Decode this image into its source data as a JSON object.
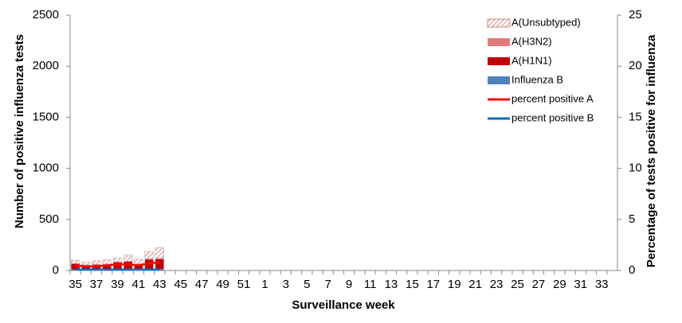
{
  "chart_data": {
    "type": "bar-line",
    "x_label": "Surveillance  week",
    "y_label": "Number of positive influenza tests",
    "y2_label": "Percentage of tests positive for influenza",
    "categories": [
      "35",
      null,
      "37",
      null,
      "39",
      null,
      "41",
      null,
      "43",
      null,
      "45",
      null,
      "47",
      null,
      "49",
      null,
      "51",
      null,
      "1",
      null,
      "3",
      null,
      "5",
      null,
      "7",
      null,
      "9",
      null,
      "11",
      null,
      "13",
      null,
      "15",
      null,
      "17",
      null,
      "19",
      null,
      "21",
      null,
      "23",
      null,
      "25",
      null,
      "27",
      null,
      "29",
      null,
      "31",
      null,
      "33",
      null
    ],
    "ylim": [
      0,
      2500
    ],
    "yticks": [
      0,
      500,
      1000,
      1500,
      2000,
      2500
    ],
    "y2lim": [
      0,
      25
    ],
    "y2ticks": [
      0,
      5,
      10,
      15,
      20,
      25
    ],
    "series": [
      {
        "name": "A(Unsubtyped)",
        "kind": "bar",
        "hatch": true,
        "color": "#d48a8a",
        "values": [
          30,
          25,
          35,
          40,
          35,
          60,
          45,
          70,
          105,
          null,
          null,
          null,
          null,
          null,
          null,
          null,
          null,
          null,
          null,
          null,
          null,
          null,
          null,
          null,
          null,
          null,
          null,
          null,
          null,
          null,
          null,
          null,
          null,
          null,
          null,
          null,
          null,
          null,
          null,
          null,
          null,
          null,
          null,
          null,
          null,
          null,
          null,
          null,
          null,
          null,
          null,
          null
        ]
      },
      {
        "name": "A(H3N2)",
        "kind": "bar",
        "color": "#e07b7b",
        "values": [
          5,
          5,
          5,
          5,
          5,
          5,
          5,
          10,
          10,
          null,
          null,
          null,
          null,
          null,
          null,
          null,
          null,
          null,
          null,
          null,
          null,
          null,
          null,
          null,
          null,
          null,
          null,
          null,
          null,
          null,
          null,
          null,
          null,
          null,
          null,
          null,
          null,
          null,
          null,
          null,
          null,
          null,
          null,
          null,
          null,
          null,
          null,
          null,
          null,
          null,
          null,
          null
        ]
      },
      {
        "name": "A(H1N1)",
        "kind": "bar",
        "color": "#c00000",
        "values": [
          55,
          40,
          45,
          50,
          65,
          70,
          50,
          90,
          95,
          null,
          null,
          null,
          null,
          null,
          null,
          null,
          null,
          null,
          null,
          null,
          null,
          null,
          null,
          null,
          null,
          null,
          null,
          null,
          null,
          null,
          null,
          null,
          null,
          null,
          null,
          null,
          null,
          null,
          null,
          null,
          null,
          null,
          null,
          null,
          null,
          null,
          null,
          null,
          null,
          null,
          null,
          null
        ]
      },
      {
        "name": "Influenza B",
        "kind": "bar",
        "color": "#4f81bd",
        "values": [
          10,
          10,
          10,
          10,
          15,
          15,
          10,
          15,
          15,
          null,
          null,
          null,
          null,
          null,
          null,
          null,
          null,
          null,
          null,
          null,
          null,
          null,
          null,
          null,
          null,
          null,
          null,
          null,
          null,
          null,
          null,
          null,
          null,
          null,
          null,
          null,
          null,
          null,
          null,
          null,
          null,
          null,
          null,
          null,
          null,
          null,
          null,
          null,
          null,
          null,
          null,
          null
        ]
      },
      {
        "name": "percent positive A",
        "kind": "line",
        "axis": "y2",
        "color": "#ff0000",
        "values": [
          0.5,
          0.4,
          0.4,
          0.5,
          0.6,
          0.6,
          0.5,
          0.7,
          0.8,
          null,
          null,
          null,
          null,
          null,
          null,
          null,
          null,
          null,
          null,
          null,
          null,
          null,
          null,
          null,
          null,
          null,
          null,
          null,
          null,
          null,
          null,
          null,
          null,
          null,
          null,
          null,
          null,
          null,
          null,
          null,
          null,
          null,
          null,
          null,
          null,
          null,
          null,
          null,
          null,
          null,
          null,
          null
        ]
      },
      {
        "name": "percent positive B",
        "kind": "line",
        "axis": "y2",
        "color": "#0070c0",
        "values": [
          0.1,
          0.1,
          0.1,
          0.1,
          0.1,
          0.1,
          0.1,
          0.1,
          0.1,
          null,
          null,
          null,
          null,
          null,
          null,
          null,
          null,
          null,
          null,
          null,
          null,
          null,
          null,
          null,
          null,
          null,
          null,
          null,
          null,
          null,
          null,
          null,
          null,
          null,
          null,
          null,
          null,
          null,
          null,
          null,
          null,
          null,
          null,
          null,
          null,
          null,
          null,
          null,
          null,
          null,
          null,
          null
        ]
      }
    ]
  }
}
